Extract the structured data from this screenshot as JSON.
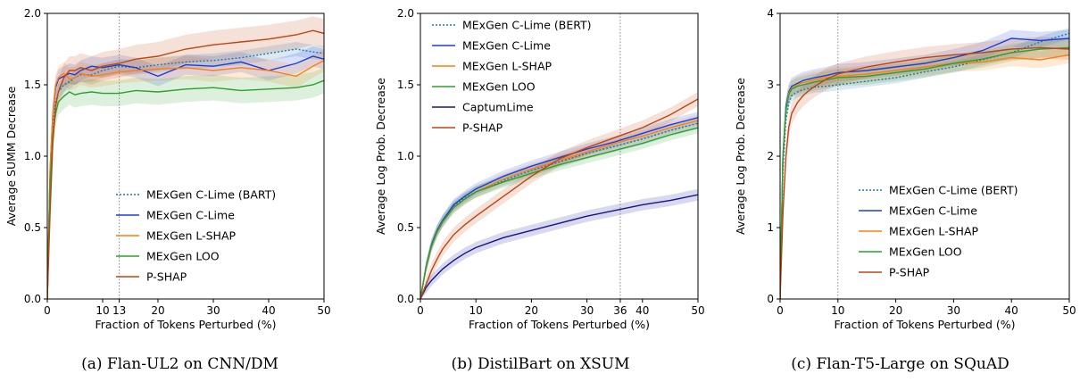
{
  "chart_data": [
    {
      "type": "line",
      "caption": "(a) Flan-UL2 on CNN/DM",
      "xlabel": "Fraction of Tokens Perturbed (%)",
      "ylabel": "Average SUMM Decrease",
      "xlim": [
        0,
        50
      ],
      "ylim": [
        0,
        2.0
      ],
      "xticks": [
        0,
        10,
        13,
        20,
        30,
        40,
        50
      ],
      "xtick_labels": [
        "0",
        "10",
        "13",
        "20",
        "30",
        "40",
        "50"
      ],
      "yticks": [
        0,
        0.5,
        1.0,
        1.5,
        2.0
      ],
      "ytick_labels": [
        "0.0",
        "0.5",
        "1.0",
        "1.5",
        "2.0"
      ],
      "vline": 13,
      "legend_position": "lower-right",
      "grid": false,
      "series": [
        {
          "name": "MExGen C-Lime (BART)",
          "color": "#1f77b4",
          "dashed": true,
          "band": 0.05,
          "x": [
            0,
            0.5,
            1,
            1.5,
            2,
            3,
            4,
            5,
            6,
            8,
            10,
            13,
            16,
            20,
            25,
            30,
            35,
            40,
            45,
            48,
            50
          ],
          "y": [
            0,
            0.8,
            1.2,
            1.38,
            1.45,
            1.5,
            1.52,
            1.55,
            1.57,
            1.57,
            1.6,
            1.63,
            1.62,
            1.64,
            1.66,
            1.67,
            1.69,
            1.72,
            1.75,
            1.73,
            1.72
          ]
        },
        {
          "name": "MExGen C-Lime",
          "color": "#1a3fd9",
          "dashed": false,
          "band": 0.07,
          "x": [
            0,
            0.5,
            1,
            1.5,
            2,
            3,
            4,
            5,
            6,
            8,
            10,
            13,
            16,
            20,
            25,
            30,
            35,
            40,
            45,
            48,
            50
          ],
          "y": [
            0,
            0.9,
            1.3,
            1.48,
            1.54,
            1.56,
            1.58,
            1.57,
            1.6,
            1.63,
            1.62,
            1.64,
            1.62,
            1.56,
            1.64,
            1.63,
            1.66,
            1.6,
            1.65,
            1.7,
            1.68
          ]
        },
        {
          "name": "MExGen L-SHAP",
          "color": "#ff7f0e",
          "dashed": false,
          "band": 0.08,
          "x": [
            0,
            0.5,
            1,
            1.5,
            2,
            3,
            4,
            5,
            6,
            8,
            10,
            13,
            16,
            20,
            25,
            30,
            35,
            40,
            45,
            48,
            50
          ],
          "y": [
            0,
            0.9,
            1.3,
            1.5,
            1.55,
            1.58,
            1.54,
            1.55,
            1.58,
            1.56,
            1.57,
            1.59,
            1.6,
            1.61,
            1.62,
            1.6,
            1.62,
            1.6,
            1.56,
            1.63,
            1.67
          ]
        },
        {
          "name": "MExGen LOO",
          "color": "#2ca02c",
          "dashed": false,
          "band": 0.09,
          "x": [
            0,
            0.5,
            1,
            1.5,
            2,
            3,
            4,
            5,
            6,
            8,
            10,
            13,
            16,
            20,
            25,
            30,
            35,
            40,
            45,
            48,
            50
          ],
          "y": [
            0,
            0.8,
            1.15,
            1.3,
            1.38,
            1.42,
            1.45,
            1.43,
            1.44,
            1.45,
            1.44,
            1.44,
            1.46,
            1.45,
            1.47,
            1.48,
            1.46,
            1.47,
            1.48,
            1.5,
            1.53
          ]
        },
        {
          "name": "P-SHAP",
          "color": "#c0440f",
          "dashed": false,
          "band": 0.1,
          "x": [
            0,
            0.5,
            1,
            1.5,
            2,
            3,
            4,
            5,
            6,
            8,
            10,
            13,
            16,
            20,
            25,
            30,
            35,
            40,
            45,
            48,
            50
          ],
          "y": [
            0,
            0.6,
            1.1,
            1.35,
            1.45,
            1.55,
            1.6,
            1.6,
            1.62,
            1.6,
            1.63,
            1.65,
            1.68,
            1.7,
            1.75,
            1.78,
            1.8,
            1.82,
            1.85,
            1.88,
            1.86
          ]
        }
      ]
    },
    {
      "type": "line",
      "caption": "(b) DistilBart on XSUM",
      "xlabel": "Fraction of Tokens Perturbed (%)",
      "ylabel": "Average Log Prob. Decrease",
      "xlim": [
        0,
        50
      ],
      "ylim": [
        0,
        2.0
      ],
      "xticks": [
        0,
        10,
        20,
        30,
        36,
        40,
        50
      ],
      "xtick_labels": [
        "0",
        "10",
        "20",
        "30",
        "36",
        "40",
        "50"
      ],
      "yticks": [
        0,
        0.5,
        1.0,
        1.5,
        2.0
      ],
      "ytick_labels": [
        "0.0",
        "0.5",
        "1.0",
        "1.5",
        "2.0"
      ],
      "vline": 36,
      "legend_position": "upper-left",
      "grid": false,
      "series": [
        {
          "name": "MExGen C-Lime (BERT)",
          "color": "#1f77b4",
          "dashed": true,
          "band": 0.04,
          "x": [
            0,
            1,
            2,
            3,
            4,
            6,
            8,
            10,
            15,
            20,
            25,
            30,
            35,
            40,
            45,
            50
          ],
          "y": [
            0,
            0.22,
            0.38,
            0.48,
            0.55,
            0.65,
            0.71,
            0.75,
            0.83,
            0.9,
            0.96,
            1.02,
            1.07,
            1.12,
            1.18,
            1.23
          ]
        },
        {
          "name": "MExGen C-Lime",
          "color": "#1a3fd9",
          "dashed": false,
          "band": 0.04,
          "x": [
            0,
            1,
            2,
            3,
            4,
            6,
            8,
            10,
            15,
            20,
            25,
            30,
            35,
            40,
            45,
            50
          ],
          "y": [
            0,
            0.22,
            0.38,
            0.48,
            0.55,
            0.66,
            0.72,
            0.77,
            0.86,
            0.93,
            0.99,
            1.05,
            1.1,
            1.16,
            1.22,
            1.27
          ]
        },
        {
          "name": "MExGen L-SHAP",
          "color": "#ff7f0e",
          "dashed": false,
          "band": 0.04,
          "x": [
            0,
            1,
            2,
            3,
            4,
            6,
            8,
            10,
            15,
            20,
            25,
            30,
            35,
            40,
            45,
            50
          ],
          "y": [
            0,
            0.22,
            0.37,
            0.47,
            0.54,
            0.64,
            0.7,
            0.75,
            0.84,
            0.91,
            0.97,
            1.03,
            1.09,
            1.14,
            1.2,
            1.25
          ]
        },
        {
          "name": "MExGen LOO",
          "color": "#2ca02c",
          "dashed": false,
          "band": 0.04,
          "x": [
            0,
            1,
            2,
            3,
            4,
            6,
            8,
            10,
            15,
            20,
            25,
            30,
            35,
            40,
            45,
            50
          ],
          "y": [
            0,
            0.22,
            0.37,
            0.47,
            0.54,
            0.64,
            0.7,
            0.75,
            0.82,
            0.88,
            0.94,
            0.99,
            1.04,
            1.09,
            1.15,
            1.2
          ]
        },
        {
          "name": "CaptumLime",
          "color": "#14148c",
          "dashed": false,
          "band": 0.04,
          "x": [
            0,
            1,
            2,
            3,
            4,
            6,
            8,
            10,
            15,
            20,
            25,
            30,
            35,
            40,
            45,
            50
          ],
          "y": [
            0,
            0.08,
            0.13,
            0.17,
            0.21,
            0.27,
            0.32,
            0.36,
            0.43,
            0.48,
            0.53,
            0.58,
            0.62,
            0.66,
            0.69,
            0.73
          ]
        },
        {
          "name": "P-SHAP",
          "color": "#c0440f",
          "dashed": false,
          "band": 0.05,
          "x": [
            0,
            1,
            2,
            3,
            4,
            6,
            8,
            10,
            15,
            20,
            25,
            30,
            35,
            40,
            45,
            50
          ],
          "y": [
            0,
            0.1,
            0.2,
            0.28,
            0.35,
            0.45,
            0.52,
            0.58,
            0.72,
            0.86,
            0.98,
            1.06,
            1.13,
            1.2,
            1.29,
            1.4
          ]
        }
      ]
    },
    {
      "type": "line",
      "caption": "(c) Flan-T5-Large on SQuAD",
      "xlabel": "Fraction of Tokens Perturbed (%)",
      "ylabel": "Average Log Prob. Decrease",
      "xlim": [
        0,
        50
      ],
      "ylim": [
        0,
        4
      ],
      "xticks": [
        0,
        10,
        20,
        30,
        40,
        50
      ],
      "xtick_labels": [
        "0",
        "10",
        "20",
        "30",
        "40",
        "50"
      ],
      "yticks": [
        0,
        1,
        2,
        3,
        4
      ],
      "ytick_labels": [
        "0",
        "1",
        "2",
        "3",
        "4"
      ],
      "vline": 10,
      "legend_position": "lower-right",
      "grid": false,
      "series": [
        {
          "name": "MExGen C-Lime (BERT)",
          "color": "#1f77b4",
          "dashed": true,
          "band": 0.08,
          "x": [
            0,
            0.5,
            1,
            1.5,
            2,
            3,
            4,
            5,
            6,
            8,
            10,
            15,
            20,
            25,
            30,
            35,
            40,
            45,
            50
          ],
          "y": [
            0,
            1.8,
            2.5,
            2.75,
            2.85,
            2.9,
            2.93,
            2.95,
            2.97,
            2.98,
            3.0,
            3.05,
            3.1,
            3.18,
            3.25,
            3.35,
            3.45,
            3.6,
            3.72
          ]
        },
        {
          "name": "MExGen C-Lime",
          "color": "#1a3fd9",
          "dashed": false,
          "band": 0.12,
          "x": [
            0,
            0.5,
            1,
            1.5,
            2,
            3,
            4,
            5,
            6,
            8,
            10,
            15,
            20,
            25,
            30,
            35,
            40,
            45,
            50
          ],
          "y": [
            0,
            2.0,
            2.7,
            2.9,
            2.98,
            3.02,
            3.06,
            3.08,
            3.1,
            3.13,
            3.17,
            3.2,
            3.25,
            3.3,
            3.38,
            3.48,
            3.65,
            3.62,
            3.65
          ]
        },
        {
          "name": "MExGen L-SHAP",
          "color": "#ff7f0e",
          "dashed": false,
          "band": 0.12,
          "x": [
            0,
            0.5,
            1,
            1.5,
            2,
            3,
            4,
            5,
            6,
            8,
            10,
            15,
            20,
            25,
            30,
            35,
            40,
            45,
            50
          ],
          "y": [
            0,
            2.0,
            2.65,
            2.88,
            2.95,
            3.0,
            3.03,
            3.05,
            3.07,
            3.1,
            3.12,
            3.15,
            3.2,
            3.25,
            3.3,
            3.32,
            3.38,
            3.35,
            3.42
          ]
        },
        {
          "name": "MExGen LOO",
          "color": "#2ca02c",
          "dashed": false,
          "band": 0.12,
          "x": [
            0,
            0.5,
            1,
            1.5,
            2,
            3,
            4,
            5,
            6,
            8,
            10,
            15,
            20,
            25,
            30,
            35,
            40,
            45,
            50
          ],
          "y": [
            0,
            2.0,
            2.65,
            2.86,
            2.94,
            2.98,
            3.0,
            3.02,
            3.04,
            3.07,
            3.1,
            3.12,
            3.17,
            3.22,
            3.3,
            3.36,
            3.45,
            3.5,
            3.52
          ]
        },
        {
          "name": "P-SHAP",
          "color": "#c0440f",
          "dashed": false,
          "band": 0.15,
          "x": [
            0,
            0.5,
            1,
            1.5,
            2,
            3,
            4,
            5,
            6,
            8,
            10,
            15,
            20,
            25,
            30,
            35,
            40,
            45,
            50
          ],
          "y": [
            0,
            1.2,
            2.0,
            2.4,
            2.6,
            2.75,
            2.85,
            2.92,
            2.98,
            3.08,
            3.15,
            3.25,
            3.32,
            3.38,
            3.42,
            3.45,
            3.5,
            3.52,
            3.5
          ]
        }
      ]
    }
  ]
}
